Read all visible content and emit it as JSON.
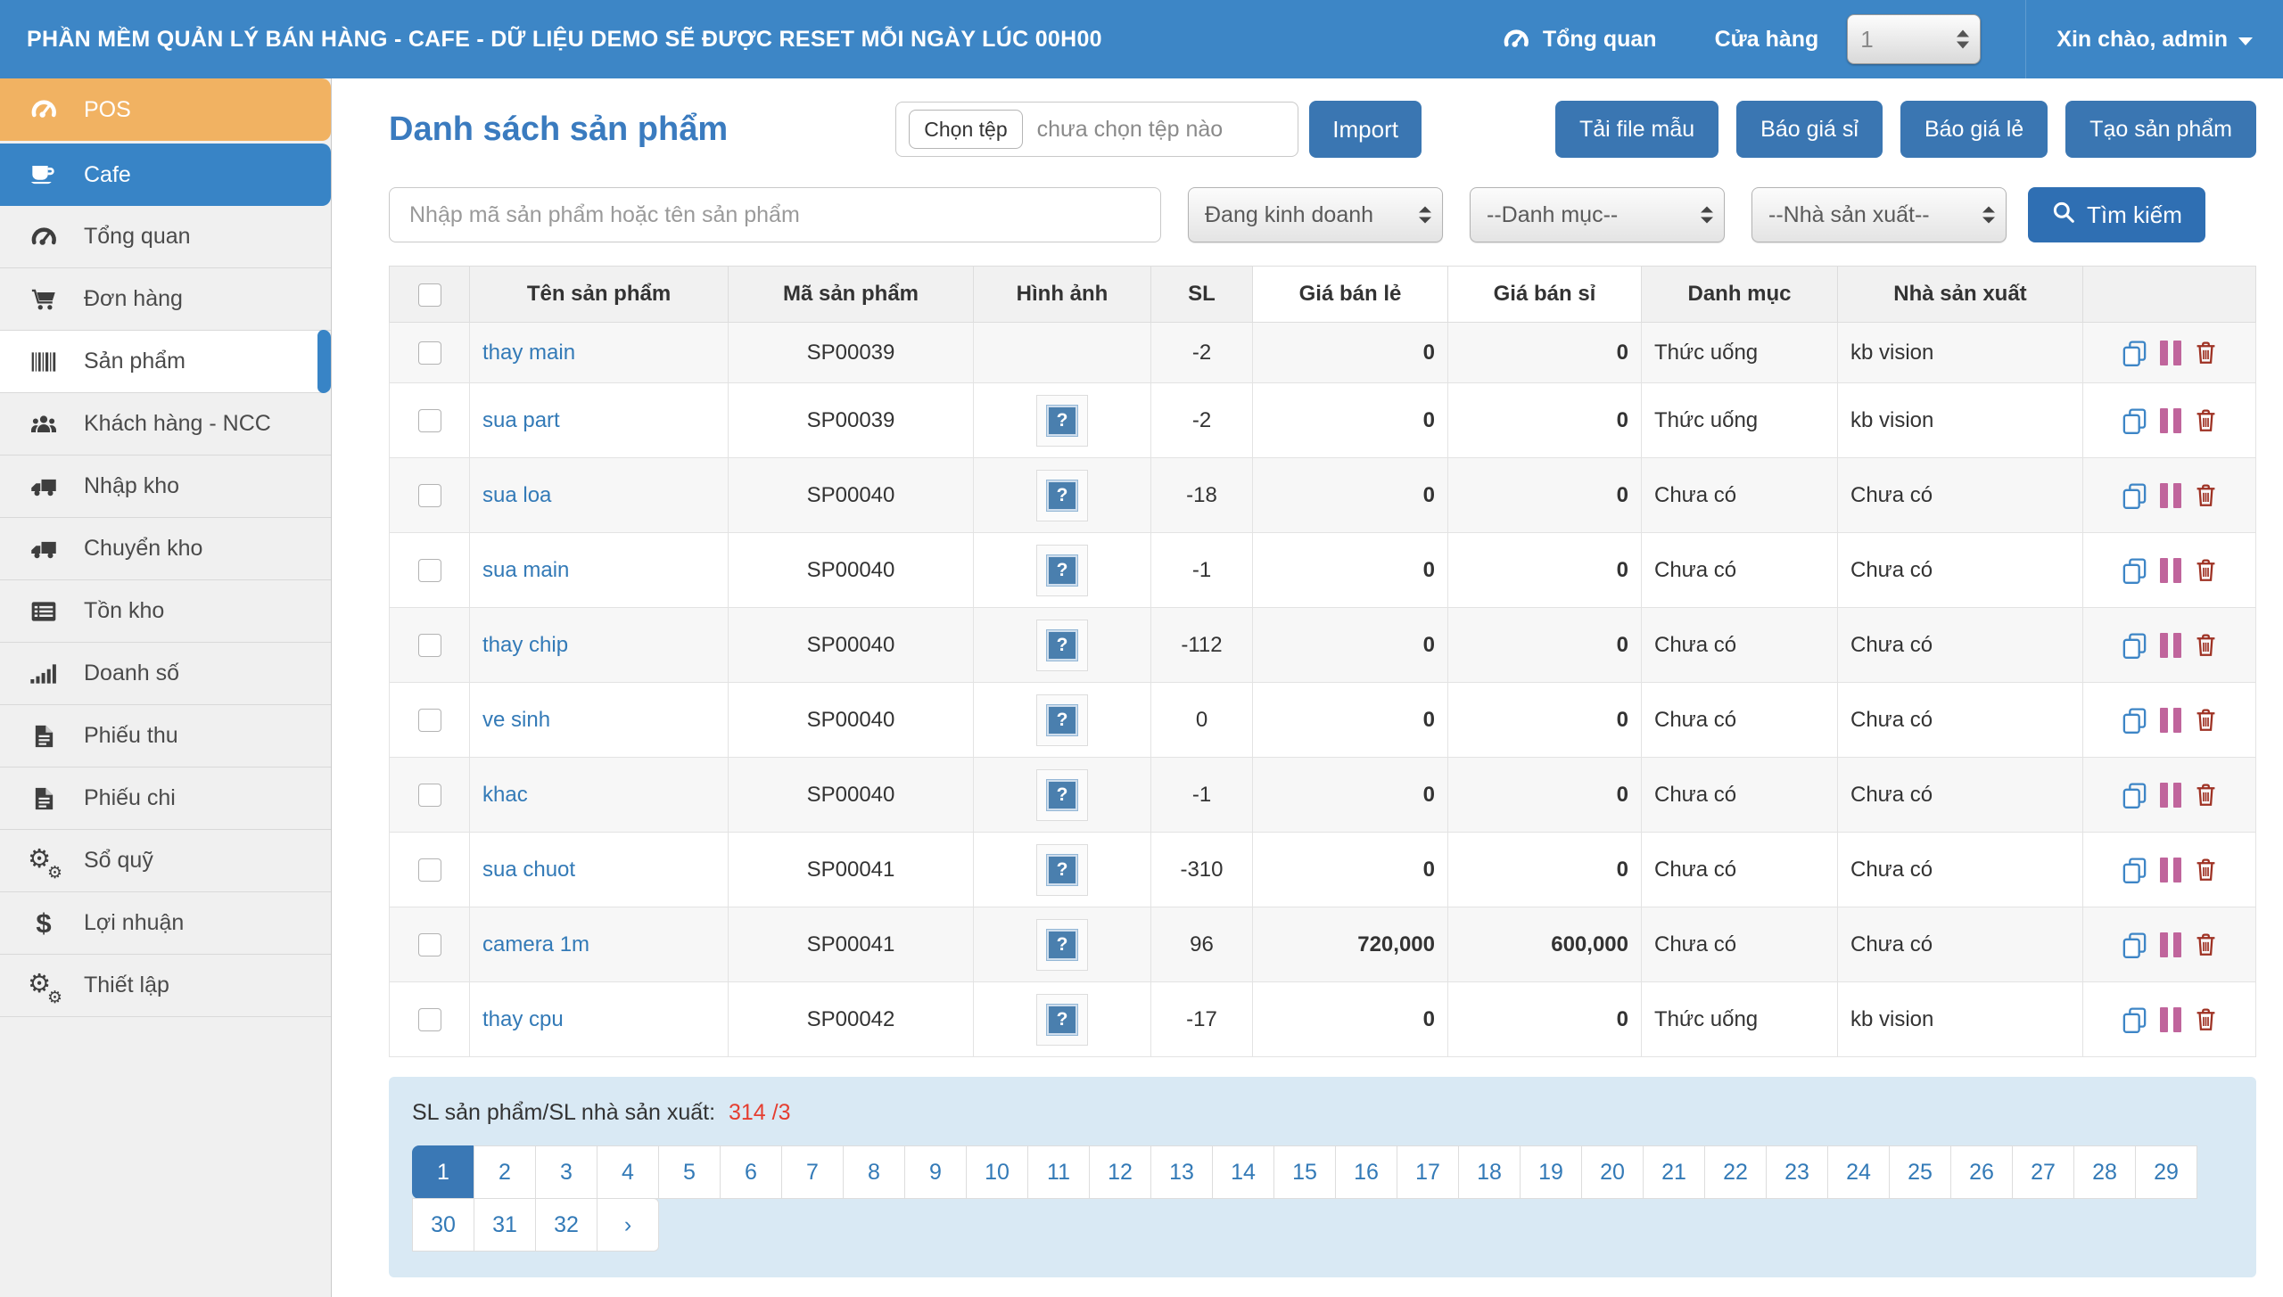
{
  "topbar": {
    "title": "PHẦN MỀM QUẢN LÝ BÁN HÀNG - CAFE - DỮ LIỆU DEMO SẼ ĐƯỢC RESET MỖI NGÀY LÚC 00H00",
    "overview_label": "Tổng quan",
    "store_label": "Cửa hàng",
    "store_value": "1",
    "greeting": "Xin chào, admin"
  },
  "sidebar": {
    "items": [
      {
        "label": "POS",
        "icon": "gauge",
        "variant": "pos"
      },
      {
        "label": "Cafe",
        "icon": "coffee",
        "variant": "cafe"
      },
      {
        "label": "Tổng quan",
        "icon": "gauge",
        "variant": "default"
      },
      {
        "label": "Đơn hàng",
        "icon": "cart",
        "variant": "default"
      },
      {
        "label": "Sản phẩm",
        "icon": "barcode",
        "variant": "active"
      },
      {
        "label": "Khách hàng - NCC",
        "icon": "users",
        "variant": "default"
      },
      {
        "label": "Nhập kho",
        "icon": "truck",
        "variant": "default"
      },
      {
        "label": "Chuyển kho",
        "icon": "truck",
        "variant": "default"
      },
      {
        "label": "Tồn kho",
        "icon": "list",
        "variant": "default"
      },
      {
        "label": "Doanh số",
        "icon": "chart",
        "variant": "default"
      },
      {
        "label": "Phiếu thu",
        "icon": "file",
        "variant": "default"
      },
      {
        "label": "Phiếu chi",
        "icon": "file",
        "variant": "default"
      },
      {
        "label": "Sổ quỹ",
        "icon": "gears",
        "variant": "default"
      },
      {
        "label": "Lợi nhuận",
        "icon": "dollar",
        "variant": "default"
      },
      {
        "label": "Thiết lập",
        "icon": "gears",
        "variant": "default"
      }
    ]
  },
  "header": {
    "page_title": "Danh sách sản phẩm",
    "file_button": "Chọn tệp",
    "file_status": "chưa chọn tệp nào",
    "import_button": "Import",
    "actions": [
      "Tải file mẫu",
      "Báo giá sỉ",
      "Báo giá lẻ",
      "Tạo sản phẩm"
    ]
  },
  "filters": {
    "search_placeholder": "Nhập mã sản phẩm hoặc tên sản phẩm",
    "status_select": "Đang kinh doanh",
    "category_select": "--Danh mục--",
    "manufacturer_select": "--Nhà sản xuất--",
    "search_button": "Tìm kiếm"
  },
  "table": {
    "headers": [
      "Tên sản phẩm",
      "Mã sản phẩm",
      "Hình ảnh",
      "SL",
      "Giá bán lẻ",
      "Giá bán sỉ",
      "Danh mục",
      "Nhà sản xuất"
    ],
    "image_placeholder_glyph": "?",
    "rows": [
      {
        "name": "thay main",
        "code": "SP00039",
        "has_image": false,
        "qty": "-2",
        "retail": "0",
        "wholesale": "0",
        "category": "Thức uống",
        "manufacturer": "kb vision"
      },
      {
        "name": "sua part",
        "code": "SP00039",
        "has_image": true,
        "qty": "-2",
        "retail": "0",
        "wholesale": "0",
        "category": "Thức uống",
        "manufacturer": "kb vision"
      },
      {
        "name": "sua loa",
        "code": "SP00040",
        "has_image": true,
        "qty": "-18",
        "retail": "0",
        "wholesale": "0",
        "category": "Chưa có",
        "manufacturer": "Chưa có"
      },
      {
        "name": "sua main",
        "code": "SP00040",
        "has_image": true,
        "qty": "-1",
        "retail": "0",
        "wholesale": "0",
        "category": "Chưa có",
        "manufacturer": "Chưa có"
      },
      {
        "name": "thay chip",
        "code": "SP00040",
        "has_image": true,
        "qty": "-112",
        "retail": "0",
        "wholesale": "0",
        "category": "Chưa có",
        "manufacturer": "Chưa có"
      },
      {
        "name": "ve sinh",
        "code": "SP00040",
        "has_image": true,
        "qty": "0",
        "retail": "0",
        "wholesale": "0",
        "category": "Chưa có",
        "manufacturer": "Chưa có"
      },
      {
        "name": "khac",
        "code": "SP00040",
        "has_image": true,
        "qty": "-1",
        "retail": "0",
        "wholesale": "0",
        "category": "Chưa có",
        "manufacturer": "Chưa có"
      },
      {
        "name": "sua chuot",
        "code": "SP00041",
        "has_image": true,
        "qty": "-310",
        "retail": "0",
        "wholesale": "0",
        "category": "Chưa có",
        "manufacturer": "Chưa có"
      },
      {
        "name": "camera 1m",
        "code": "SP00041",
        "has_image": true,
        "qty": "96",
        "retail": "720,000",
        "wholesale": "600,000",
        "category": "Chưa có",
        "manufacturer": "Chưa có"
      },
      {
        "name": "thay cpu",
        "code": "SP00042",
        "has_image": true,
        "qty": "-17",
        "retail": "0",
        "wholesale": "0",
        "category": "Thức uống",
        "manufacturer": "kb vision"
      }
    ]
  },
  "footer": {
    "summary_label": "SL sản phẩm/SL nhà sản xuất:",
    "summary_value": "314 /3",
    "active_page": "1",
    "pages_row1": [
      "1",
      "2",
      "3",
      "4",
      "5",
      "6",
      "7",
      "8",
      "9",
      "10",
      "11",
      "12",
      "13",
      "14",
      "15",
      "16",
      "17",
      "18",
      "19",
      "20",
      "21",
      "22",
      "23",
      "24",
      "25",
      "26",
      "27",
      "28",
      "29"
    ],
    "pages_row2": [
      "30",
      "31",
      "32"
    ],
    "next_label": "›"
  },
  "colors": {
    "topbar_blue": "#3d86c6",
    "pos_orange": "#f1b262",
    "cafe_blue": "#3884c6",
    "button_blue": "#3a76b2",
    "title_blue": "#3a7bbf",
    "link_blue": "#337ab7",
    "summary_red": "#e53e30",
    "footer_bg": "#d9e9f4",
    "pause_pink": "#c0659c",
    "trash_red": "#9e3123",
    "copy_blue": "#3d85c6"
  }
}
